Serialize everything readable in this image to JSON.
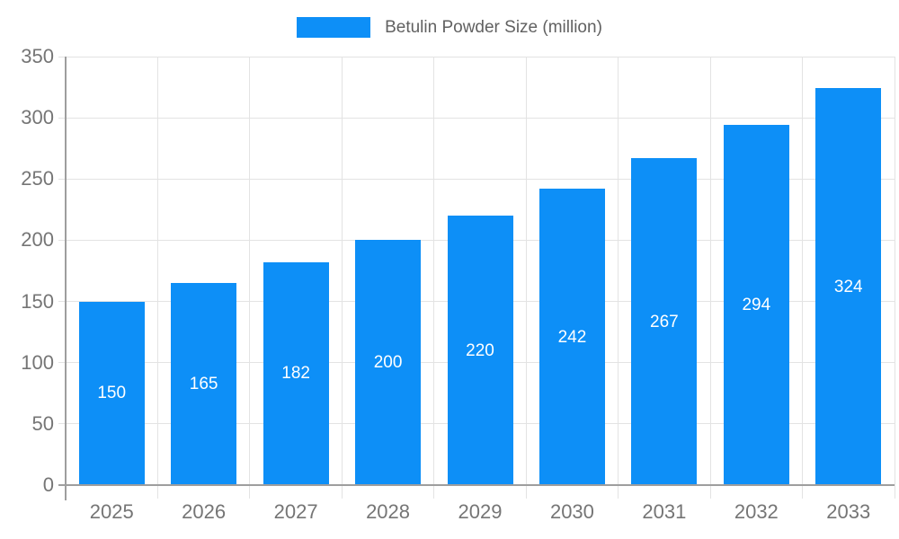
{
  "legend": {
    "series_label": "Betulin Powder Size (million)"
  },
  "chart_data": {
    "type": "bar",
    "title": "",
    "series_name": "Betulin Powder Size (million)",
    "categories": [
      "2025",
      "2026",
      "2027",
      "2028",
      "2029",
      "2030",
      "2031",
      "2032",
      "2033"
    ],
    "values": [
      150,
      165,
      182,
      200,
      220,
      242,
      267,
      294,
      324
    ],
    "xlabel": "",
    "ylabel": "",
    "ylim": [
      0,
      350
    ],
    "ytick_step": 50,
    "ytick_labels": [
      "0",
      "50",
      "100",
      "150",
      "200",
      "250",
      "300",
      "350"
    ],
    "grid": true,
    "legend_position": "top-center",
    "data_labels": "inside-center-white",
    "colors": {
      "bar": "#0d8ff7",
      "gridline": "#e3e3e3",
      "axis_line": "#9e9e9e",
      "axis_text": "#757575",
      "legend_text": "#616161",
      "data_label_text": "#ffffff",
      "background": "#ffffff"
    }
  }
}
